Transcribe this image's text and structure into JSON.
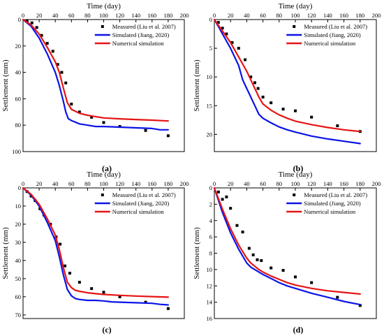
{
  "colors": {
    "measured": "#000000",
    "jiang": "#0a14e6",
    "numerical": "#e61414",
    "axis": "#000000"
  },
  "chart_data": [
    {
      "type": "line",
      "caption": "(a)",
      "xlabel": "Time (day)",
      "ylabel": "Settlement (mm)",
      "xlim": [
        0,
        200
      ],
      "ylim": [
        0,
        100
      ],
      "xticks": [
        "0",
        "20",
        "40",
        "60",
        "80",
        "100",
        "120",
        "140",
        "160",
        "180",
        "200"
      ],
      "yticks": [
        "0",
        "20",
        "40",
        "60",
        "80",
        "100"
      ],
      "y_inverted": true,
      "legend_position": "top-right",
      "series": [
        {
          "name": "Measured (Liu et al. 2007)",
          "style": "markers",
          "x": [
            5,
            11,
            17,
            23,
            30,
            37,
            43,
            48,
            53,
            60,
            70,
            85,
            100,
            120,
            152,
            180
          ],
          "y": [
            1,
            2.5,
            6,
            12,
            18,
            24,
            34,
            40,
            48,
            64,
            70,
            74,
            78,
            81,
            84,
            88
          ]
        },
        {
          "name": "Simulated (Jiang, 2020)",
          "style": "line",
          "x": [
            0,
            10,
            20,
            30,
            40,
            45,
            50,
            53,
            56,
            60,
            70,
            80,
            90,
            100,
            120,
            140,
            160,
            170,
            180
          ],
          "y": [
            0,
            5,
            14,
            26,
            40,
            50,
            62,
            70,
            75,
            76.5,
            79,
            80,
            81,
            81,
            81.5,
            82,
            82.5,
            83.5,
            83.5
          ]
        },
        {
          "name": "Numerical simulation",
          "style": "line",
          "x": [
            0,
            10,
            20,
            30,
            40,
            45,
            50,
            55,
            60,
            70,
            80,
            90,
            100,
            120,
            140,
            160,
            180
          ],
          "y": [
            0,
            4,
            11,
            21,
            32,
            40,
            52,
            63,
            68,
            71,
            72.5,
            73.5,
            74.5,
            75.2,
            75.7,
            76.2,
            76.8
          ]
        }
      ]
    },
    {
      "type": "line",
      "caption": "(b)",
      "xlabel": "Time (day)",
      "ylabel": "Settlement (mm)",
      "xlim": [
        0,
        200
      ],
      "ylim": [
        0,
        23
      ],
      "xticks": [
        "0",
        "20",
        "40",
        "60",
        "80",
        "100",
        "120",
        "140",
        "160",
        "180",
        "200"
      ],
      "yticks": [
        "0",
        "5",
        "10",
        "15",
        "20"
      ],
      "y_inverted": true,
      "legend_position": "top-right",
      "series": [
        {
          "name": "Measured (Liu et al. 2007)",
          "style": "markers",
          "x": [
            5,
            10,
            15,
            22,
            30,
            38,
            45,
            50,
            54,
            60,
            70,
            85,
            100,
            120,
            152,
            180
          ],
          "y": [
            0.5,
            1.5,
            2.5,
            4,
            5,
            7,
            10,
            11,
            12,
            13.5,
            14.5,
            15.6,
            15.9,
            17,
            18.5,
            19.5
          ]
        },
        {
          "name": "Simulated (Jiang, 2020)",
          "style": "line",
          "x": [
            0,
            5,
            10,
            20,
            30,
            35,
            40,
            45,
            50,
            55,
            60,
            70,
            80,
            90,
            100,
            120,
            140,
            160,
            180
          ],
          "y": [
            0,
            1.2,
            2.5,
            5,
            8,
            10.5,
            12,
            13.5,
            15,
            16.5,
            17.2,
            18,
            18.7,
            19.2,
            19.6,
            20.3,
            20.8,
            21.2,
            21.6
          ]
        },
        {
          "name": "Numerical simulation",
          "style": "line",
          "x": [
            0,
            5,
            10,
            20,
            30,
            40,
            45,
            50,
            55,
            60,
            70,
            80,
            90,
            100,
            120,
            140,
            160,
            180
          ],
          "y": [
            0,
            1,
            2,
            4,
            6.5,
            9,
            10.5,
            12,
            13.5,
            14.7,
            15.8,
            16.6,
            17.2,
            17.7,
            18.3,
            18.8,
            19.2,
            19.5
          ]
        }
      ]
    },
    {
      "type": "line",
      "caption": "(c)",
      "xlabel": "Time (day)",
      "ylabel": "Settlement (mm)",
      "xlim": [
        0,
        200
      ],
      "ylim": [
        0,
        72
      ],
      "xticks": [
        "0",
        "20",
        "40",
        "60",
        "80",
        "100",
        "120",
        "140",
        "160",
        "180",
        "200"
      ],
      "yticks": [
        "0",
        "10",
        "20",
        "30",
        "40",
        "50",
        "60",
        "70"
      ],
      "y_inverted": true,
      "legend_position": "top-right",
      "series": [
        {
          "name": "Measured (Liu et al. 2007)",
          "style": "markers",
          "x": [
            5,
            10,
            15,
            21,
            26,
            34,
            41,
            46,
            52,
            58,
            70,
            85,
            100,
            120,
            152,
            180
          ],
          "y": [
            2,
            4.5,
            7,
            11.5,
            15,
            20,
            27,
            31,
            43,
            47,
            52,
            55.5,
            57.5,
            60,
            63,
            66.5
          ]
        },
        {
          "name": "Simulated (Jiang, 2020)",
          "style": "line",
          "x": [
            0,
            10,
            20,
            30,
            40,
            45,
            50,
            55,
            60,
            65,
            70,
            80,
            90,
            100,
            110,
            120,
            140,
            160,
            170,
            180
          ],
          "y": [
            0,
            4,
            10,
            19,
            29,
            38,
            48,
            56,
            59.5,
            61,
            61.5,
            62,
            62,
            62.3,
            62.8,
            63,
            63.3,
            63.6,
            64.2,
            64.5
          ]
        },
        {
          "name": "Numerical simulation",
          "style": "line",
          "x": [
            0,
            10,
            20,
            30,
            40,
            45,
            50,
            55,
            60,
            65,
            70,
            80,
            90,
            100,
            120,
            140,
            160,
            180
          ],
          "y": [
            0,
            3.5,
            9,
            17,
            26,
            34,
            44,
            52,
            55,
            56.5,
            57,
            57.8,
            58.3,
            58.7,
            59.2,
            59.6,
            59.9,
            60.2
          ]
        }
      ]
    },
    {
      "type": "line",
      "caption": "(d)",
      "xlabel": "Time (day)",
      "ylabel": "Settlement (mm)",
      "xlim": [
        0,
        200
      ],
      "ylim": [
        0,
        16
      ],
      "xticks": [
        "0",
        "20",
        "40",
        "60",
        "80",
        "100",
        "120",
        "140",
        "160",
        "180",
        "200"
      ],
      "yticks": [
        "0",
        "2",
        "4",
        "6",
        "8",
        "10",
        "12",
        "14",
        "16"
      ],
      "y_inverted": true,
      "legend_position": "top-right",
      "series": [
        {
          "name": "Measured (Liu et al. 2007)",
          "style": "markers",
          "x": [
            5,
            10,
            15,
            20,
            28,
            35,
            43,
            48,
            53,
            58,
            70,
            85,
            100,
            120,
            152,
            180
          ],
          "y": [
            0.5,
            1.4,
            1.1,
            2.5,
            4.6,
            5.4,
            7.4,
            8.2,
            8.8,
            8.9,
            9.8,
            10.1,
            10.9,
            11.6,
            13.4,
            14.4
          ]
        },
        {
          "name": "Simulated (Jiang, 2020)",
          "style": "line",
          "x": [
            0,
            5,
            10,
            20,
            30,
            40,
            45,
            50,
            55,
            60,
            70,
            80,
            90,
            100,
            120,
            140,
            160,
            180
          ],
          "y": [
            0,
            1.5,
            3,
            5.5,
            7.5,
            9.2,
            9.7,
            10,
            10.3,
            10.6,
            11.1,
            11.6,
            12,
            12.3,
            12.9,
            13.4,
            13.9,
            14.3
          ]
        },
        {
          "name": "Numerical simulation",
          "style": "line",
          "x": [
            0,
            5,
            10,
            20,
            30,
            40,
            45,
            50,
            55,
            60,
            70,
            80,
            90,
            100,
            120,
            140,
            160,
            180
          ],
          "y": [
            0,
            1.3,
            2.6,
            5,
            7,
            8.6,
            9.2,
            9.6,
            10,
            10.3,
            10.8,
            11.2,
            11.6,
            11.9,
            12.3,
            12.6,
            12.8,
            13
          ]
        }
      ]
    }
  ]
}
